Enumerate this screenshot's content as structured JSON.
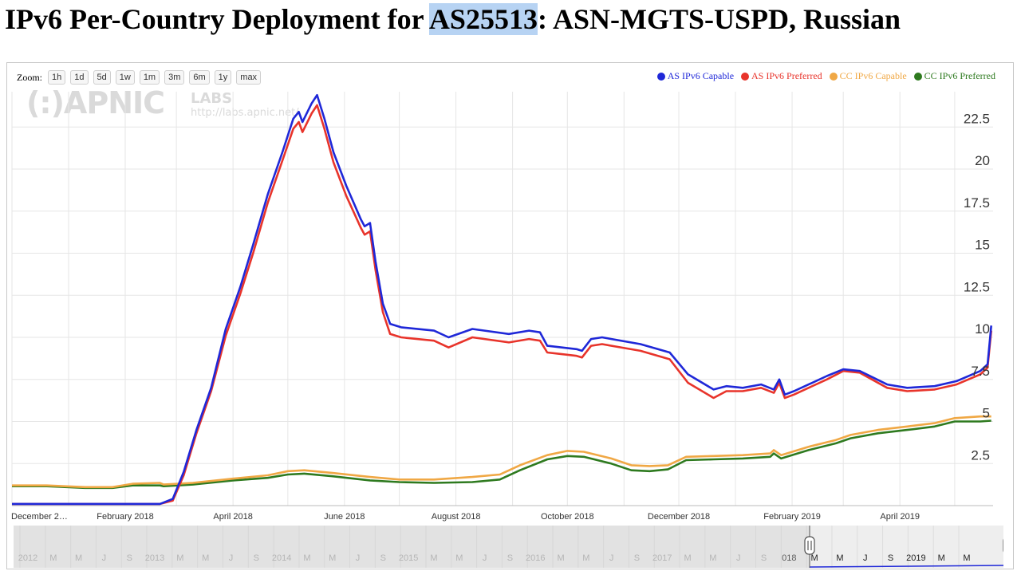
{
  "page": {
    "title_prefix": "IPv6 Per-Country Deployment for ",
    "title_highlight": "AS25513",
    "title_suffix": ": ASN-MGTS-USPD, Russian"
  },
  "zoom": {
    "label": "Zoom:",
    "buttons": [
      "1h",
      "1d",
      "5d",
      "1w",
      "1m",
      "3m",
      "6m",
      "1y",
      "max"
    ]
  },
  "watermark": {
    "logo": "(:)APNIC",
    "labs": "LABS",
    "url": "http://labs.apnic.net/"
  },
  "colors": {
    "as_capable": "#1f28d8",
    "as_preferred": "#e8342b",
    "cc_capable": "#f0a845",
    "cc_preferred": "#2e7a1f",
    "grid": "#e6e6e6",
    "axis_text": "#333333"
  },
  "chart_data": {
    "type": "line",
    "legend_position": "top-right",
    "grid": true,
    "ylim": [
      0,
      24.6
    ],
    "y_ticks": [
      "2.5",
      "5",
      "7.5",
      "10",
      "12.5",
      "15",
      "17.5",
      "20",
      "22.5"
    ],
    "x_tick_labels": [
      "December 2…",
      "February 2018",
      "April 2018",
      "June 2018",
      "August 2018",
      "October 2018",
      "December 2018",
      "February 2019",
      "April 2019"
    ],
    "x_tick_dates": [
      "2017-12-01",
      "2018-02-01",
      "2018-04-01",
      "2018-06-01",
      "2018-08-01",
      "2018-10-01",
      "2018-12-01",
      "2019-02-01",
      "2019-04-01"
    ],
    "xlim": [
      "2017-12-01",
      "2019-05-22"
    ],
    "series": [
      {
        "name": "AS IPv6 Capable",
        "color": "#1f28d8",
        "points": [
          [
            "2017-12-01",
            0.1
          ],
          [
            "2018-02-20",
            0.1
          ],
          [
            "2018-02-27",
            0.4
          ],
          [
            "2018-03-05",
            2.0
          ],
          [
            "2018-03-12",
            4.5
          ],
          [
            "2018-03-20",
            7.0
          ],
          [
            "2018-03-28",
            10.5
          ],
          [
            "2018-04-05",
            13.0
          ],
          [
            "2018-04-12",
            15.5
          ],
          [
            "2018-04-20",
            18.5
          ],
          [
            "2018-04-28",
            21.0
          ],
          [
            "2018-05-04",
            23.0
          ],
          [
            "2018-05-07",
            23.4
          ],
          [
            "2018-05-09",
            22.8
          ],
          [
            "2018-05-14",
            23.9
          ],
          [
            "2018-05-17",
            24.4
          ],
          [
            "2018-05-21",
            23.0
          ],
          [
            "2018-05-26",
            21.0
          ],
          [
            "2018-06-02",
            19.0
          ],
          [
            "2018-06-10",
            17.0
          ],
          [
            "2018-06-12",
            16.6
          ],
          [
            "2018-06-15",
            16.8
          ],
          [
            "2018-06-18",
            14.5
          ],
          [
            "2018-06-22",
            12.0
          ],
          [
            "2018-06-26",
            10.8
          ],
          [
            "2018-07-02",
            10.6
          ],
          [
            "2018-07-20",
            10.4
          ],
          [
            "2018-07-28",
            10.0
          ],
          [
            "2018-08-10",
            10.5
          ],
          [
            "2018-08-30",
            10.2
          ],
          [
            "2018-09-10",
            10.4
          ],
          [
            "2018-09-16",
            10.3
          ],
          [
            "2018-09-20",
            9.5
          ],
          [
            "2018-09-28",
            9.4
          ],
          [
            "2018-10-06",
            9.3
          ],
          [
            "2018-10-09",
            9.2
          ],
          [
            "2018-10-14",
            9.9
          ],
          [
            "2018-10-20",
            10.0
          ],
          [
            "2018-11-10",
            9.6
          ],
          [
            "2018-11-26",
            9.1
          ],
          [
            "2018-12-06",
            7.8
          ],
          [
            "2018-12-20",
            6.9
          ],
          [
            "2018-12-27",
            7.1
          ],
          [
            "2019-01-05",
            7.0
          ],
          [
            "2019-01-15",
            7.2
          ],
          [
            "2019-01-22",
            6.9
          ],
          [
            "2019-01-25",
            7.5
          ],
          [
            "2019-01-28",
            6.6
          ],
          [
            "2019-02-02",
            6.8
          ],
          [
            "2019-02-10",
            7.2
          ],
          [
            "2019-02-20",
            7.7
          ],
          [
            "2019-03-01",
            8.1
          ],
          [
            "2019-03-10",
            8.0
          ],
          [
            "2019-03-25",
            7.2
          ],
          [
            "2019-04-05",
            7.0
          ],
          [
            "2019-04-20",
            7.1
          ],
          [
            "2019-05-02",
            7.4
          ],
          [
            "2019-05-15",
            8.0
          ],
          [
            "2019-05-19",
            8.4
          ],
          [
            "2019-05-21",
            10.7
          ]
        ]
      },
      {
        "name": "AS IPv6 Preferred",
        "color": "#e8342b",
        "points": [
          [
            "2017-12-01",
            0.1
          ],
          [
            "2018-02-20",
            0.1
          ],
          [
            "2018-02-27",
            0.3
          ],
          [
            "2018-03-05",
            1.8
          ],
          [
            "2018-03-12",
            4.3
          ],
          [
            "2018-03-20",
            6.8
          ],
          [
            "2018-03-28",
            10.1
          ],
          [
            "2018-04-05",
            12.6
          ],
          [
            "2018-04-12",
            15.0
          ],
          [
            "2018-04-20",
            18.0
          ],
          [
            "2018-04-28",
            20.5
          ],
          [
            "2018-05-04",
            22.4
          ],
          [
            "2018-05-07",
            22.8
          ],
          [
            "2018-05-09",
            22.2
          ],
          [
            "2018-05-14",
            23.3
          ],
          [
            "2018-05-17",
            23.8
          ],
          [
            "2018-05-21",
            22.4
          ],
          [
            "2018-05-26",
            20.4
          ],
          [
            "2018-06-02",
            18.4
          ],
          [
            "2018-06-10",
            16.5
          ],
          [
            "2018-06-12",
            16.1
          ],
          [
            "2018-06-15",
            16.3
          ],
          [
            "2018-06-18",
            14.0
          ],
          [
            "2018-06-22",
            11.5
          ],
          [
            "2018-06-26",
            10.2
          ],
          [
            "2018-07-02",
            10.0
          ],
          [
            "2018-07-20",
            9.8
          ],
          [
            "2018-07-28",
            9.4
          ],
          [
            "2018-08-10",
            10.0
          ],
          [
            "2018-08-30",
            9.7
          ],
          [
            "2018-09-10",
            9.9
          ],
          [
            "2018-09-16",
            9.8
          ],
          [
            "2018-09-20",
            9.1
          ],
          [
            "2018-09-28",
            9.0
          ],
          [
            "2018-10-06",
            8.9
          ],
          [
            "2018-10-09",
            8.8
          ],
          [
            "2018-10-14",
            9.5
          ],
          [
            "2018-10-20",
            9.6
          ],
          [
            "2018-11-10",
            9.2
          ],
          [
            "2018-11-26",
            8.7
          ],
          [
            "2018-12-06",
            7.3
          ],
          [
            "2018-12-20",
            6.4
          ],
          [
            "2018-12-27",
            6.8
          ],
          [
            "2019-01-05",
            6.8
          ],
          [
            "2019-01-15",
            7.0
          ],
          [
            "2019-01-22",
            6.7
          ],
          [
            "2019-01-25",
            7.3
          ],
          [
            "2019-01-28",
            6.4
          ],
          [
            "2019-02-02",
            6.6
          ],
          [
            "2019-02-10",
            7.0
          ],
          [
            "2019-02-20",
            7.5
          ],
          [
            "2019-03-01",
            8.0
          ],
          [
            "2019-03-10",
            7.9
          ],
          [
            "2019-03-25",
            7.0
          ],
          [
            "2019-04-05",
            6.8
          ],
          [
            "2019-04-20",
            6.9
          ],
          [
            "2019-05-02",
            7.2
          ],
          [
            "2019-05-15",
            7.8
          ],
          [
            "2019-05-19",
            8.2
          ],
          [
            "2019-05-21",
            10.4
          ]
        ]
      },
      {
        "name": "CC IPv6 Capable",
        "color": "#f0a845",
        "points": [
          [
            "2017-12-01",
            1.2
          ],
          [
            "2017-12-20",
            1.2
          ],
          [
            "2018-01-10",
            1.1
          ],
          [
            "2018-01-25",
            1.1
          ],
          [
            "2018-02-05",
            1.3
          ],
          [
            "2018-02-20",
            1.35
          ],
          [
            "2018-02-22",
            1.25
          ],
          [
            "2018-03-10",
            1.35
          ],
          [
            "2018-04-01",
            1.6
          ],
          [
            "2018-04-20",
            1.8
          ],
          [
            "2018-05-01",
            2.05
          ],
          [
            "2018-05-10",
            2.1
          ],
          [
            "2018-05-25",
            1.95
          ],
          [
            "2018-06-15",
            1.7
          ],
          [
            "2018-07-01",
            1.55
          ],
          [
            "2018-07-20",
            1.55
          ],
          [
            "2018-08-10",
            1.7
          ],
          [
            "2018-08-25",
            1.85
          ],
          [
            "2018-09-05",
            2.4
          ],
          [
            "2018-09-20",
            3.0
          ],
          [
            "2018-10-01",
            3.25
          ],
          [
            "2018-10-10",
            3.2
          ],
          [
            "2018-10-25",
            2.8
          ],
          [
            "2018-11-05",
            2.4
          ],
          [
            "2018-11-15",
            2.35
          ],
          [
            "2018-11-25",
            2.4
          ],
          [
            "2018-12-05",
            2.9
          ],
          [
            "2018-12-20",
            2.95
          ],
          [
            "2019-01-05",
            3.0
          ],
          [
            "2019-01-20",
            3.1
          ],
          [
            "2019-01-22",
            3.3
          ],
          [
            "2019-01-26",
            3.0
          ],
          [
            "2019-02-10",
            3.5
          ],
          [
            "2019-02-25",
            3.9
          ],
          [
            "2019-03-05",
            4.2
          ],
          [
            "2019-03-20",
            4.5
          ],
          [
            "2019-04-05",
            4.7
          ],
          [
            "2019-04-20",
            4.9
          ],
          [
            "2019-05-01",
            5.2
          ],
          [
            "2019-05-15",
            5.3
          ],
          [
            "2019-05-21",
            5.3
          ]
        ]
      },
      {
        "name": "CC IPv6 Preferred",
        "color": "#2e7a1f",
        "points": [
          [
            "2017-12-01",
            1.15
          ],
          [
            "2017-12-20",
            1.15
          ],
          [
            "2018-01-10",
            1.05
          ],
          [
            "2018-01-25",
            1.05
          ],
          [
            "2018-02-05",
            1.2
          ],
          [
            "2018-02-20",
            1.2
          ],
          [
            "2018-02-22",
            1.15
          ],
          [
            "2018-03-10",
            1.25
          ],
          [
            "2018-04-01",
            1.5
          ],
          [
            "2018-04-20",
            1.65
          ],
          [
            "2018-05-01",
            1.85
          ],
          [
            "2018-05-10",
            1.9
          ],
          [
            "2018-05-25",
            1.75
          ],
          [
            "2018-06-15",
            1.5
          ],
          [
            "2018-07-01",
            1.4
          ],
          [
            "2018-07-20",
            1.35
          ],
          [
            "2018-08-10",
            1.4
          ],
          [
            "2018-08-25",
            1.55
          ],
          [
            "2018-09-05",
            2.1
          ],
          [
            "2018-09-20",
            2.75
          ],
          [
            "2018-10-01",
            2.95
          ],
          [
            "2018-10-10",
            2.9
          ],
          [
            "2018-10-25",
            2.5
          ],
          [
            "2018-11-05",
            2.1
          ],
          [
            "2018-11-15",
            2.05
          ],
          [
            "2018-11-25",
            2.15
          ],
          [
            "2018-12-05",
            2.7
          ],
          [
            "2018-12-20",
            2.75
          ],
          [
            "2019-01-05",
            2.8
          ],
          [
            "2019-01-20",
            2.9
          ],
          [
            "2019-01-22",
            3.1
          ],
          [
            "2019-01-26",
            2.8
          ],
          [
            "2019-02-10",
            3.3
          ],
          [
            "2019-02-25",
            3.7
          ],
          [
            "2019-03-05",
            4.0
          ],
          [
            "2019-03-20",
            4.3
          ],
          [
            "2019-04-05",
            4.5
          ],
          [
            "2019-04-20",
            4.7
          ],
          [
            "2019-05-01",
            5.0
          ],
          [
            "2019-05-15",
            5.0
          ],
          [
            "2019-05-21",
            5.05
          ]
        ]
      }
    ]
  },
  "navigator": {
    "labels": [
      "2012",
      "M",
      "M",
      "J",
      "S",
      "2013",
      "M",
      "M",
      "J",
      "S",
      "2014",
      "M",
      "M",
      "J",
      "S",
      "2015",
      "M",
      "M",
      "J",
      "S",
      "2016",
      "M",
      "M",
      "J",
      "S",
      "2017",
      "M",
      "M",
      "J",
      "S",
      "018",
      "M",
      "M",
      "J",
      "S",
      "2019",
      "M",
      "M"
    ]
  }
}
